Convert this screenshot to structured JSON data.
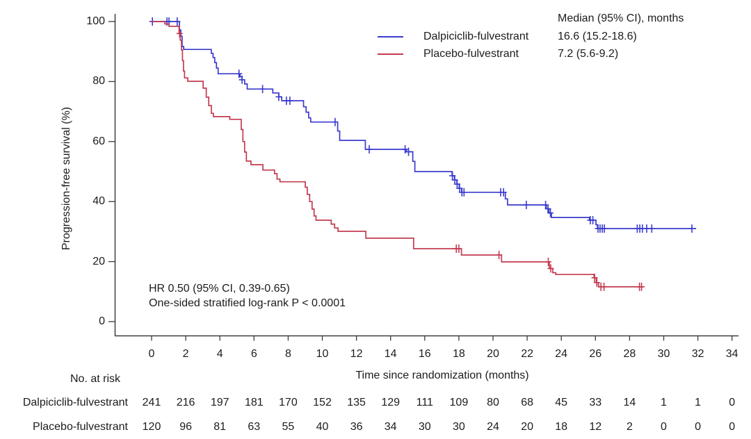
{
  "chart_data": {
    "type": "line",
    "subtype": "kaplan-meier-step",
    "title": "",
    "xlabel": "Time since randomization (months)",
    "ylabel": "Progression-free survival (%)",
    "xlim": [
      0,
      35.5
    ],
    "ylim": [
      0,
      100
    ],
    "x_ticks": [
      0,
      2,
      4,
      6,
      8,
      10,
      12,
      14,
      16,
      18,
      20,
      22,
      24,
      26,
      28,
      30,
      32,
      34
    ],
    "y_ticks": [
      0,
      20,
      40,
      60,
      80,
      100
    ],
    "grid": false,
    "legend": {
      "position": "top-right",
      "header": "Median (95% CI), months"
    },
    "annotations": [
      "HR 0.50 (95% CI, 0.39-0.65)",
      "One-sided stratified log-rank P < 0.0001"
    ],
    "colors": {
      "axis": "#3c3c3c",
      "text": "#1c1c1c"
    },
    "series": [
      {
        "name": "Dalpiciclib-fulvestrant",
        "color": "#3a3acd",
        "median_ci": "16.6 (15.2-18.6)",
        "steps": [
          [
            0,
            100
          ],
          [
            1.6,
            100
          ],
          [
            1.63,
            97.2
          ],
          [
            1.71,
            95.1
          ],
          [
            1.79,
            91.7
          ],
          [
            1.88,
            90.7
          ],
          [
            3.42,
            90.7
          ],
          [
            3.5,
            89.4
          ],
          [
            3.6,
            88.0
          ],
          [
            3.7,
            86.3
          ],
          [
            3.8,
            84.5
          ],
          [
            3.9,
            82.6
          ],
          [
            5.08,
            82.6
          ],
          [
            5.18,
            81.6
          ],
          [
            5.3,
            80.6
          ],
          [
            5.45,
            79.2
          ],
          [
            5.6,
            77.5
          ],
          [
            7.0,
            77.5
          ],
          [
            7.1,
            76.2
          ],
          [
            7.45,
            74.9
          ],
          [
            7.62,
            73.6
          ],
          [
            8.78,
            73.6
          ],
          [
            8.9,
            71.6
          ],
          [
            9.05,
            69.8
          ],
          [
            9.2,
            67.9
          ],
          [
            9.32,
            66.5
          ],
          [
            10.78,
            66.5
          ],
          [
            10.9,
            63.5
          ],
          [
            11.02,
            60.4
          ],
          [
            12.42,
            60.4
          ],
          [
            12.52,
            57.4
          ],
          [
            14.82,
            57.4
          ],
          [
            14.92,
            56.6
          ],
          [
            15.18,
            56.6
          ],
          [
            15.3,
            53.4
          ],
          [
            15.42,
            50.0
          ],
          [
            17.5,
            50.0
          ],
          [
            17.6,
            48.6
          ],
          [
            17.74,
            47.2
          ],
          [
            17.88,
            45.8
          ],
          [
            18.02,
            44.4
          ],
          [
            18.16,
            43.1
          ],
          [
            20.6,
            43.1
          ],
          [
            20.72,
            40.9
          ],
          [
            20.85,
            38.9
          ],
          [
            23.02,
            38.9
          ],
          [
            23.12,
            37.6
          ],
          [
            23.27,
            36.2
          ],
          [
            23.42,
            34.7
          ],
          [
            25.55,
            34.7
          ],
          [
            25.65,
            33.8
          ],
          [
            25.95,
            33.8
          ],
          [
            26.03,
            32.3
          ],
          [
            26.12,
            31.0
          ],
          [
            31.9,
            31.0
          ]
        ],
        "censor_times": [
          0.05,
          0.9,
          1.02,
          1.5,
          5.12,
          5.3,
          6.5,
          7.45,
          7.9,
          8.1,
          10.75,
          12.75,
          14.85,
          15.05,
          17.62,
          17.76,
          17.9,
          18.04,
          18.18,
          18.3,
          20.45,
          20.62,
          21.95,
          23.08,
          23.22,
          23.36,
          25.7,
          25.85,
          26.15,
          26.27,
          26.4,
          26.52,
          28.45,
          28.6,
          28.75,
          29.0,
          29.3,
          31.65
        ]
      },
      {
        "name": "Placebo-fulvestrant",
        "color": "#c23b4e",
        "median_ci": "7.2 (5.6-9.2)",
        "steps": [
          [
            0,
            100
          ],
          [
            0.72,
            100
          ],
          [
            0.78,
            99.2
          ],
          [
            1.02,
            98.4
          ],
          [
            1.55,
            98.4
          ],
          [
            1.61,
            96.0
          ],
          [
            1.68,
            93.8
          ],
          [
            1.75,
            90.5
          ],
          [
            1.81,
            87.0
          ],
          [
            1.87,
            83.5
          ],
          [
            1.93,
            81.2
          ],
          [
            2.06,
            81.2
          ],
          [
            2.12,
            80.1
          ],
          [
            2.95,
            80.1
          ],
          [
            3.02,
            77.8
          ],
          [
            3.12,
            77.8
          ],
          [
            3.2,
            74.8
          ],
          [
            3.35,
            72.0
          ],
          [
            3.5,
            69.4
          ],
          [
            3.62,
            68.3
          ],
          [
            4.5,
            68.3
          ],
          [
            4.58,
            67.4
          ],
          [
            5.15,
            67.4
          ],
          [
            5.25,
            64.0
          ],
          [
            5.35,
            60.0
          ],
          [
            5.45,
            56.5
          ],
          [
            5.55,
            53.5
          ],
          [
            5.75,
            53.5
          ],
          [
            5.82,
            52.3
          ],
          [
            6.45,
            52.3
          ],
          [
            6.52,
            50.5
          ],
          [
            7.12,
            50.5
          ],
          [
            7.2,
            49.3
          ],
          [
            7.35,
            47.5
          ],
          [
            7.52,
            46.6
          ],
          [
            8.92,
            46.6
          ],
          [
            9.0,
            44.8
          ],
          [
            9.12,
            42.4
          ],
          [
            9.26,
            40.0
          ],
          [
            9.4,
            37.5
          ],
          [
            9.52,
            35.2
          ],
          [
            9.63,
            33.8
          ],
          [
            10.42,
            33.8
          ],
          [
            10.52,
            32.5
          ],
          [
            10.72,
            31.2
          ],
          [
            10.92,
            30.1
          ],
          [
            12.45,
            30.1
          ],
          [
            12.55,
            27.8
          ],
          [
            15.25,
            27.8
          ],
          [
            15.35,
            24.3
          ],
          [
            18.05,
            24.3
          ],
          [
            18.15,
            22.2
          ],
          [
            20.4,
            22.2
          ],
          [
            20.5,
            19.9
          ],
          [
            23.2,
            19.9
          ],
          [
            23.3,
            17.7
          ],
          [
            23.5,
            16.3
          ],
          [
            23.68,
            15.7
          ],
          [
            25.85,
            15.7
          ],
          [
            25.92,
            14.6
          ],
          [
            26.05,
            13.0
          ],
          [
            26.18,
            11.6
          ],
          [
            28.8,
            11.6
          ]
        ],
        "censor_times": [
          1.64,
          17.85,
          18.0,
          20.35,
          23.24,
          23.38,
          25.95,
          26.08,
          26.32,
          26.5,
          28.58,
          28.7
        ]
      }
    ],
    "risk_table": {
      "title": "No. at risk",
      "times": [
        0,
        2,
        4,
        6,
        8,
        10,
        12,
        14,
        16,
        18,
        20,
        22,
        24,
        26,
        28,
        30,
        32,
        34
      ],
      "rows": [
        {
          "name": "Dalpiciclib-fulvestrant",
          "counts": [
            241,
            216,
            197,
            181,
            170,
            152,
            135,
            129,
            111,
            109,
            80,
            68,
            45,
            33,
            14,
            1,
            1,
            0
          ]
        },
        {
          "name": "Placebo-fulvestrant",
          "counts": [
            120,
            96,
            81,
            63,
            55,
            40,
            36,
            34,
            30,
            30,
            24,
            20,
            18,
            12,
            2,
            0,
            0,
            0
          ]
        }
      ]
    }
  }
}
